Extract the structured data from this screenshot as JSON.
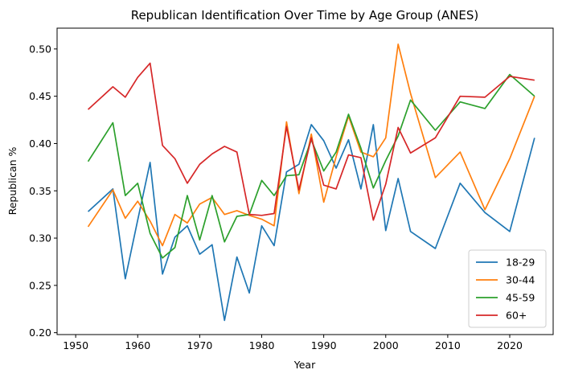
{
  "chart_data": {
    "type": "line",
    "title": "Republican Identification Over Time by Age Group (ANES)",
    "xlabel": "Year",
    "ylabel": "Republican %",
    "xlim": [
      1947,
      2027
    ],
    "ylim": [
      0.198,
      0.522
    ],
    "xticks": [
      1950,
      1960,
      1970,
      1980,
      1990,
      2000,
      2010,
      2020
    ],
    "yticks": [
      0.2,
      0.25,
      0.3,
      0.35,
      0.4,
      0.45,
      0.5
    ],
    "ytick_labels": [
      "0.20",
      "0.25",
      "0.30",
      "0.35",
      "0.40",
      "0.45",
      "0.50"
    ],
    "grid": false,
    "legend_position": "lower-right",
    "x": [
      1952,
      1956,
      1958,
      1960,
      1962,
      1964,
      1966,
      1968,
      1970,
      1972,
      1974,
      1976,
      1978,
      1980,
      1982,
      1984,
      1986,
      1988,
      1990,
      1992,
      1994,
      1996,
      1998,
      2000,
      2002,
      2004,
      2008,
      2012,
      2016,
      2020,
      2024
    ],
    "series": [
      {
        "name": "18-29",
        "color": "#1f77b4",
        "values": [
          0.328,
          0.352,
          0.257,
          0.319,
          0.38,
          0.262,
          0.301,
          0.313,
          0.283,
          0.293,
          0.213,
          0.28,
          0.242,
          0.313,
          0.292,
          0.37,
          0.378,
          0.42,
          0.403,
          0.374,
          0.404,
          0.352,
          0.42,
          0.308,
          0.363,
          0.307,
          0.289,
          0.358,
          0.327,
          0.307,
          0.406
        ]
      },
      {
        "name": "30-44",
        "color": "#ff7f0e",
        "values": [
          0.312,
          0.351,
          0.321,
          0.339,
          0.318,
          0.292,
          0.325,
          0.316,
          0.336,
          0.343,
          0.325,
          0.329,
          0.324,
          0.32,
          0.313,
          0.423,
          0.347,
          0.41,
          0.338,
          0.386,
          0.429,
          0.391,
          0.386,
          0.406,
          0.505,
          0.453,
          0.364,
          0.391,
          0.33,
          0.384,
          0.45
        ]
      },
      {
        "name": "45-59",
        "color": "#2ca02c",
        "values": [
          0.381,
          0.422,
          0.345,
          0.358,
          0.305,
          0.279,
          0.29,
          0.345,
          0.298,
          0.345,
          0.296,
          0.323,
          0.325,
          0.361,
          0.345,
          0.366,
          0.367,
          0.404,
          0.371,
          0.391,
          0.431,
          0.395,
          0.353,
          0.382,
          0.408,
          0.446,
          0.414,
          0.444,
          0.437,
          0.473,
          0.45
        ]
      },
      {
        "name": "60+",
        "color": "#d62728",
        "values": [
          0.436,
          0.46,
          0.449,
          0.47,
          0.485,
          0.398,
          0.384,
          0.358,
          0.378,
          0.389,
          0.397,
          0.391,
          0.325,
          0.324,
          0.326,
          0.418,
          0.351,
          0.406,
          0.356,
          0.352,
          0.388,
          0.385,
          0.319,
          0.357,
          0.417,
          0.39,
          0.406,
          0.45,
          0.449,
          0.471,
          0.467
        ]
      }
    ]
  }
}
